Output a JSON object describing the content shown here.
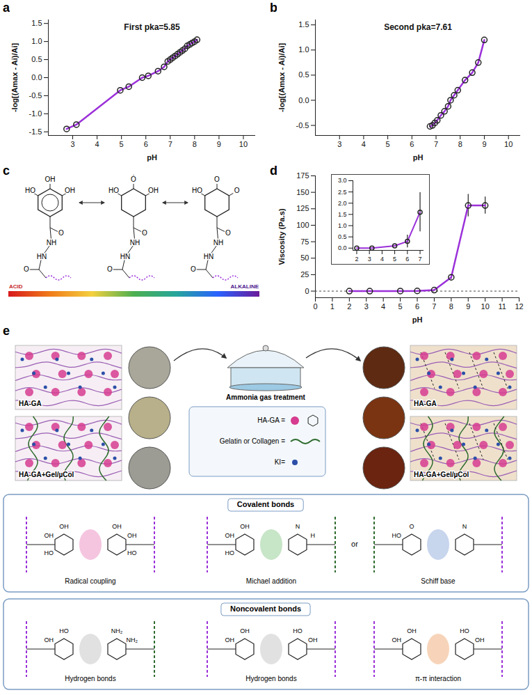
{
  "panels": [
    "a",
    "b",
    "c",
    "d",
    "e"
  ],
  "chart_data": [
    {
      "type": "line",
      "title": "First pka=5.85",
      "x_label": "pH",
      "y_label": "-log[(Amax - Ai)/Ai]",
      "x": [
        2.75,
        3.15,
        4.95,
        5.3,
        5.85,
        6.1,
        6.5,
        6.75,
        6.9,
        7.0,
        7.1,
        7.2,
        7.3,
        7.4,
        7.5,
        7.6,
        7.7,
        7.8,
        7.9,
        8.0,
        8.1
      ],
      "values": [
        -1.42,
        -1.3,
        -0.35,
        -0.25,
        0,
        0.05,
        0.18,
        0.3,
        0.45,
        0.5,
        0.55,
        0.6,
        0.65,
        0.7,
        0.75,
        0.8,
        0.88,
        0.92,
        0.96,
        1.0,
        1.05
      ],
      "color": "#9b30d9",
      "marker": "circle",
      "line_style": "solid",
      "xlim": [
        2,
        10.5
      ],
      "xticks": [
        3,
        4,
        5,
        6,
        7,
        8,
        9,
        10
      ],
      "ylim": [
        -1.6,
        1.6
      ],
      "yticks": [
        -1.5,
        {
          "value": -1,
          "label": "-1.0"
        },
        -0.5,
        {
          "value": 0,
          "label": "0.0"
        },
        0.5,
        {
          "value": 1,
          "label": "1.0"
        },
        1.5
      ]
    },
    {
      "type": "line",
      "title": "Second pka=7.61",
      "x_label": "pH",
      "y_label": "-log[(Amax - Ai)/Ai]",
      "x": [
        6.75,
        6.85,
        6.95,
        7.05,
        7.2,
        7.35,
        7.5,
        7.6,
        7.75,
        7.9,
        8.2,
        8.5,
        8.75,
        9.0
      ],
      "values": [
        -0.52,
        -0.5,
        -0.45,
        -0.4,
        -0.3,
        -0.22,
        -0.12,
        0,
        0.1,
        0.2,
        0.4,
        0.55,
        0.75,
        1.2
      ],
      "color": "#9b30d9",
      "marker": "circle",
      "line_style": "solid",
      "xlim": [
        2,
        10.5
      ],
      "xticks": [
        3,
        4,
        5,
        6,
        7,
        8,
        9,
        10
      ],
      "ylim": [
        -0.7,
        1.6
      ],
      "yticks": [
        -0.5,
        {
          "value": 0,
          "label": "0.0"
        },
        0.5,
        {
          "value": 1,
          "label": "1.0"
        },
        1.5
      ]
    },
    {
      "type": "line",
      "x_label": "pH",
      "y_label": "Viscosity (Pa.s)",
      "x": [
        2,
        3.2,
        5,
        6,
        7,
        8,
        9,
        10
      ],
      "values": [
        0,
        0,
        0.1,
        0.3,
        1.6,
        21,
        130,
        130
      ],
      "errors": [
        0,
        0,
        0.02,
        0.28,
        0.87,
        3,
        17,
        13
      ],
      "color": "#9b30d9",
      "marker": "circle",
      "line_style": "solid",
      "xlim": [
        0,
        12
      ],
      "xticks": [
        0,
        1,
        2,
        3,
        4,
        5,
        6,
        7,
        8,
        9,
        10,
        11,
        12
      ],
      "ylim": [
        -10,
        175
      ],
      "yticks": [
        0,
        25,
        50,
        75,
        100,
        125,
        150,
        175
      ]
    },
    {
      "type": "line",
      "x": [
        2,
        3.2,
        5,
        6,
        7
      ],
      "values": [
        0,
        0,
        0.1,
        0.3,
        1.6
      ],
      "errors": [
        0,
        0,
        0.02,
        0.28,
        0.87
      ],
      "color": "#9b30d9",
      "marker": "circle",
      "line_style": "solid",
      "xlim": [
        1.7,
        7.3
      ],
      "xticks": [
        2,
        3,
        4,
        5,
        6,
        7
      ],
      "ylim": [
        -0.1,
        3.0
      ],
      "yticks": [
        {
          "value": 0,
          "label": "0.0"
        },
        0.5,
        {
          "value": 1,
          "label": "1.0"
        },
        1.5,
        {
          "value": 2,
          "label": "2.0"
        },
        2.5,
        {
          "value": 3,
          "label": "3.0"
        }
      ]
    }
  ],
  "diagram_c": {
    "molecules": [
      {
        "atoms": [
          "HO",
          "OH",
          "OH"
        ],
        "chain": [
          "O",
          "NH",
          "HN",
          "O"
        ]
      },
      {
        "atoms": [
          "HO",
          "Ȯ",
          "OH"
        ],
        "chain": [
          "O",
          "NH",
          "HN",
          "O"
        ]
      },
      {
        "atoms": [
          "HO",
          "O",
          "O"
        ],
        "chain": [
          "O",
          "NH",
          "HN",
          "O"
        ]
      }
    ],
    "scale": {
      "left": "ACID",
      "right": "ALKALINE"
    }
  },
  "diagram_e": {
    "before": {
      "top": "HA-GA",
      "bottom": "HA-GA+Gel/µCol"
    },
    "after": {
      "top": "HA-GA",
      "bottom": "HA-GA+Gel/µCol"
    },
    "treatment": "Ammonia gas treatment",
    "key_items": [
      "HA-GA =",
      "Gelatin or Collagen =",
      "KI="
    ],
    "covalent": {
      "title": "Covalent bonds",
      "joiner": "or",
      "items": [
        {
          "label": "Radical coupling",
          "atoms": [
            "OH",
            "OH",
            "HO",
            "OH",
            "OH",
            "HO"
          ]
        },
        {
          "label": "Michael addition",
          "atoms": [
            "OH",
            "OH",
            "HO",
            "N",
            "H"
          ]
        },
        {
          "label": "Schiff base",
          "atoms": [
            "HO",
            "O",
            "N"
          ]
        }
      ]
    },
    "noncovalent": {
      "title": "Noncovalent bonds",
      "items": [
        {
          "label": "Hydrogen bonds",
          "atoms": [
            "OH",
            "HO",
            "NH₂",
            "NH₂"
          ]
        },
        {
          "label": "Hydrogen bonds",
          "atoms": [
            "OH",
            "OH",
            "HO",
            "OH"
          ]
        },
        {
          "label": "π-π interaction",
          "atoms": [
            "OH",
            "OH",
            "HO",
            "OH"
          ]
        }
      ]
    }
  }
}
